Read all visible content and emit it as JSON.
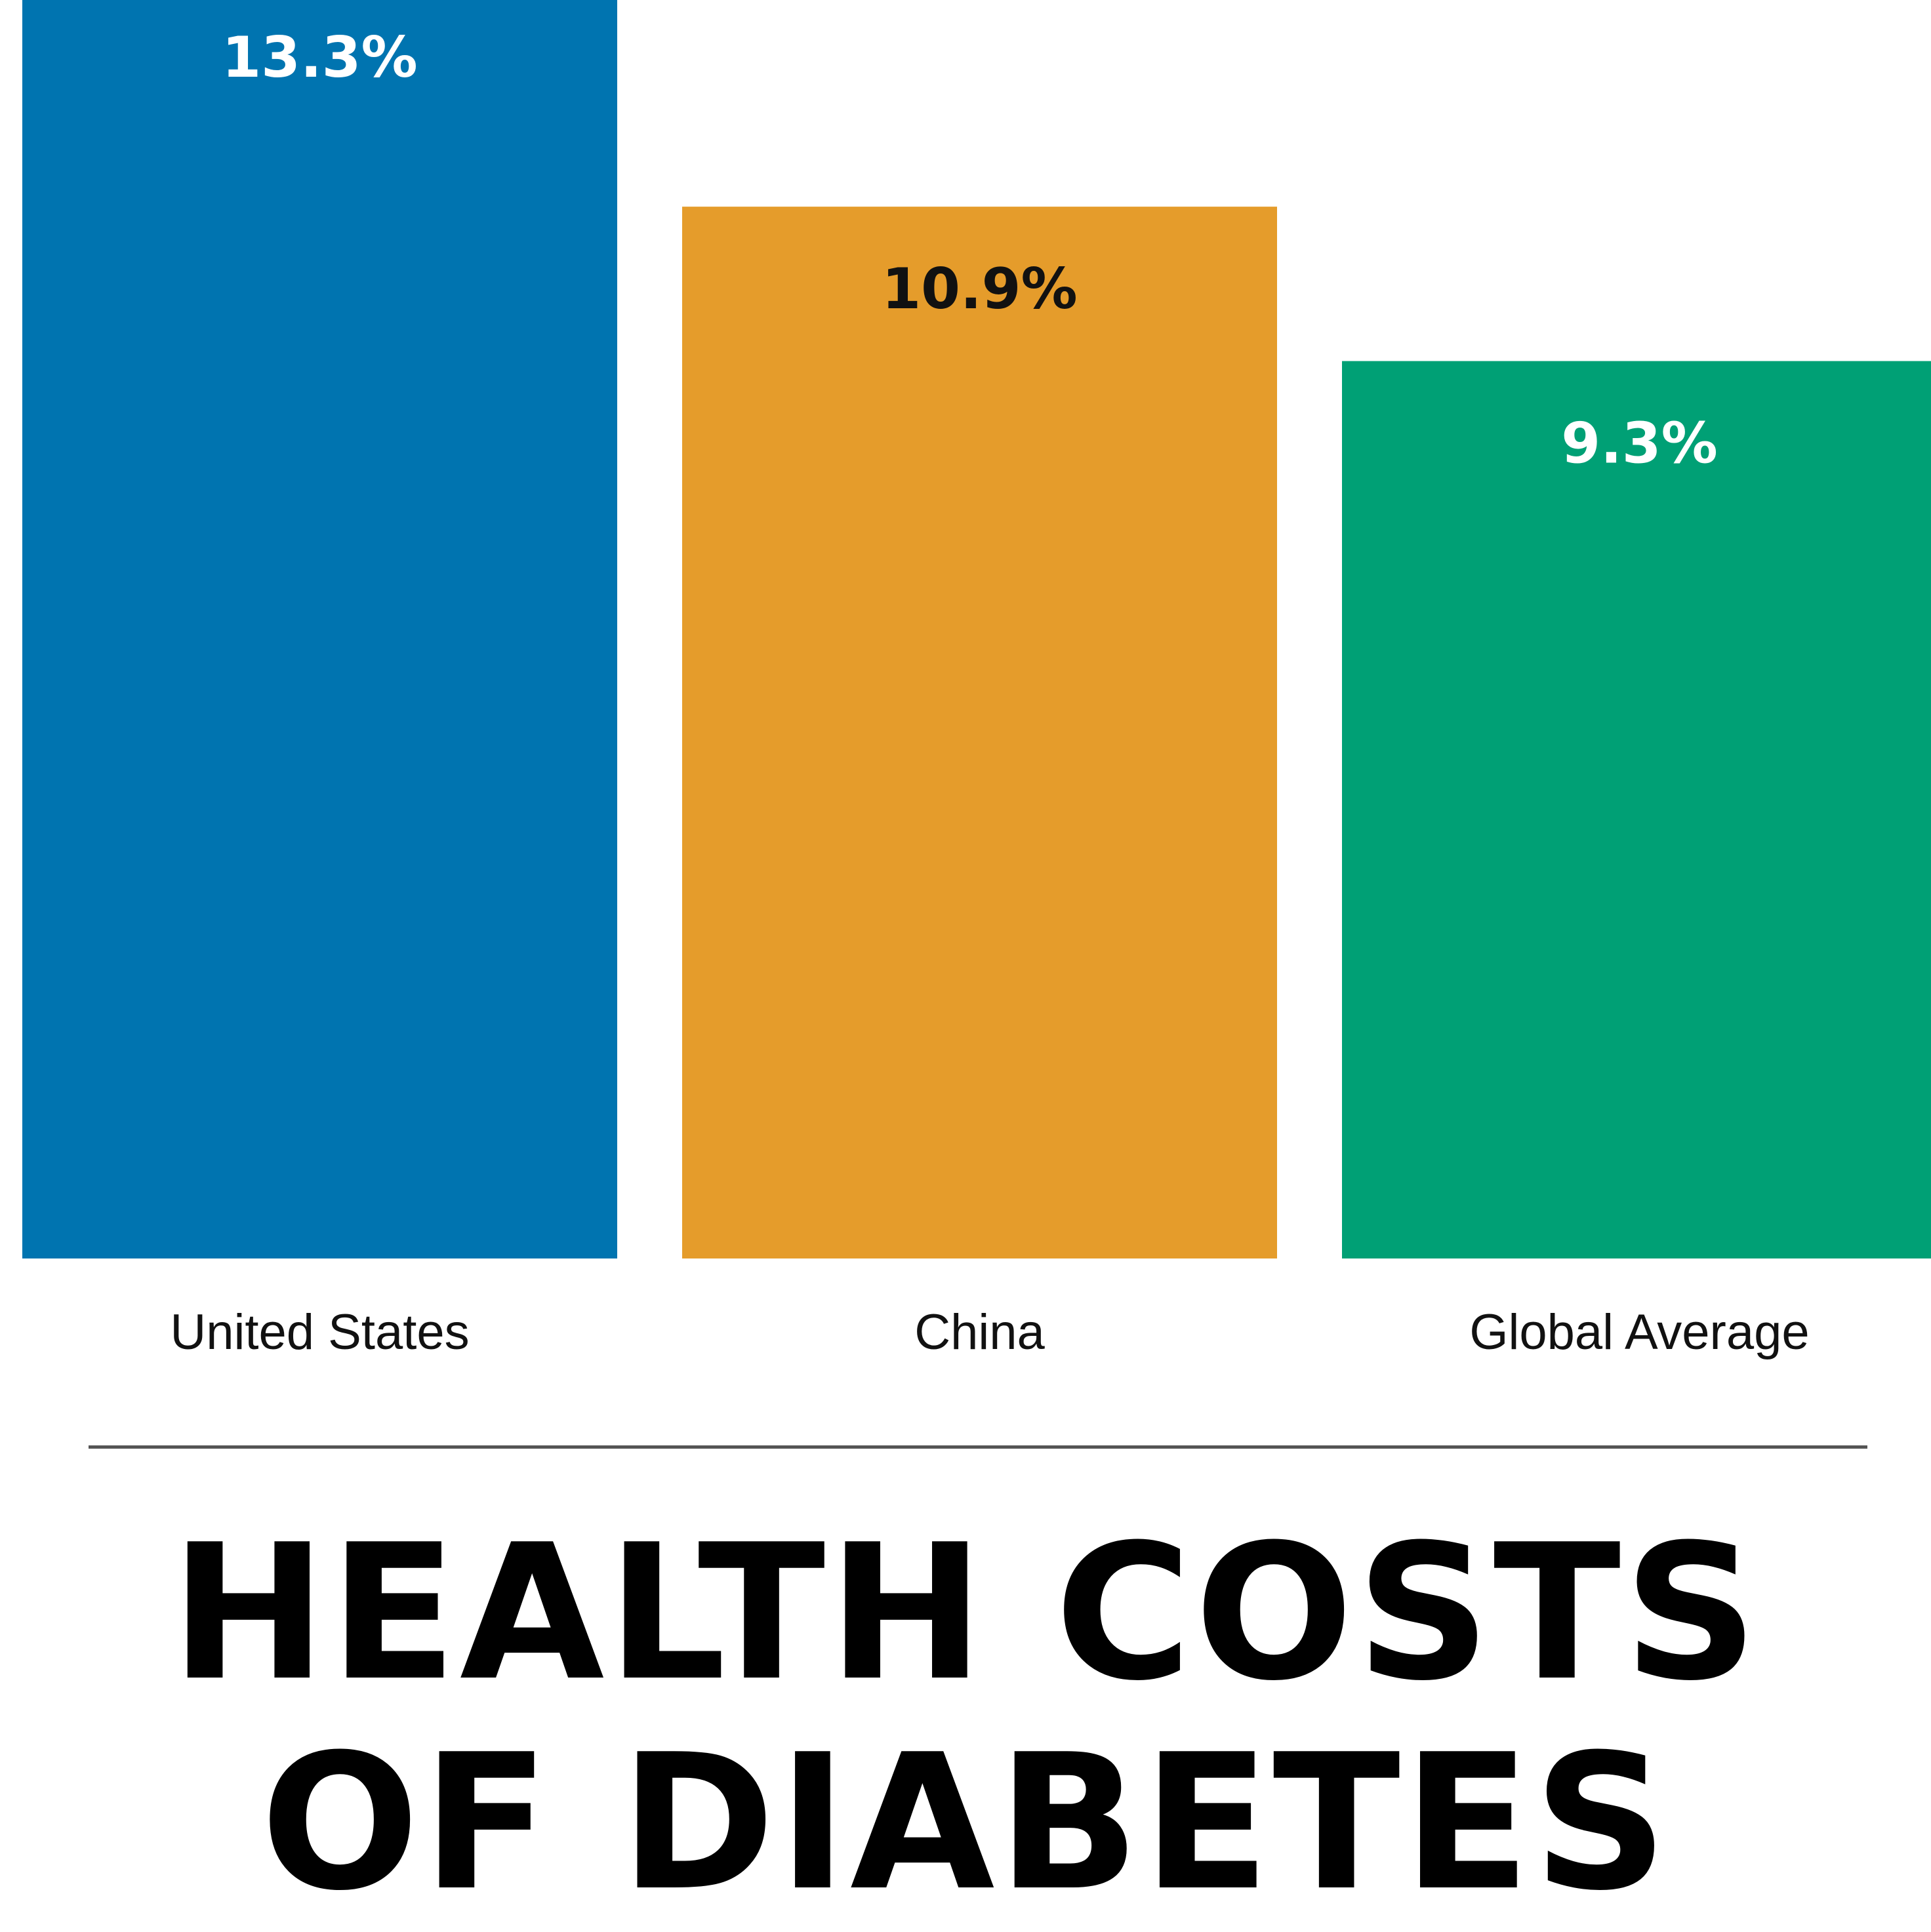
{
  "chart_data": {
    "type": "bar",
    "categories": [
      "United States",
      "China",
      "Global Average"
    ],
    "values": [
      13.3,
      10.9,
      9.3
    ],
    "value_labels": [
      "13.3%",
      "10.9%",
      "9.3%"
    ],
    "unit": "%",
    "ylim": [
      0,
      13.3
    ],
    "grid": false,
    "colors": [
      "#0074b0",
      "#e59c2b",
      "#00a075"
    ],
    "value_label_colors": [
      "#ffffff",
      "#111111",
      "#ffffff"
    ]
  },
  "headline": {
    "line1": "HEALTH COSTS",
    "line2": "OF DIABETES"
  }
}
